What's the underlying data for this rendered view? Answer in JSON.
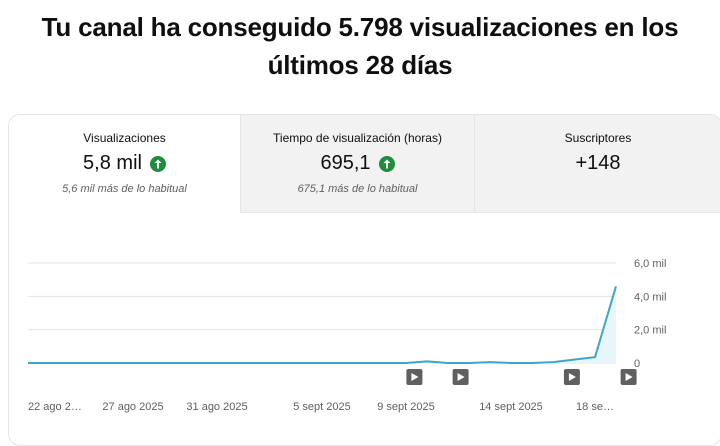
{
  "headline": "Tu canal ha conseguido 5.798 visualizaciones en los últimos 28 días",
  "tabs": [
    {
      "label": "Visualizaciones",
      "value": "5,8 mil",
      "trend_icon": "arrow-up-circle-icon",
      "sub": "5,6 mil más de lo habitual",
      "active": true
    },
    {
      "label": "Tiempo de visualización (horas)",
      "value": "695,1",
      "trend_icon": "arrow-up-circle-icon",
      "sub": "675,1 más de lo habitual",
      "active": false
    },
    {
      "label": "Suscriptores",
      "value": "+148",
      "active": false
    }
  ],
  "colors": {
    "line": "#3ea6c8",
    "area": "#e8f6fb",
    "trend_up": "#1e8e3e",
    "gridline": "#e5e5e5"
  },
  "chart_data": {
    "type": "area",
    "series": [
      {
        "name": "Visualizaciones",
        "values": [
          0,
          0,
          0,
          0,
          0,
          0,
          0,
          0,
          0,
          0,
          0,
          0,
          0,
          0,
          0,
          0,
          0,
          0,
          0,
          0.1,
          0,
          0,
          0.05,
          0,
          0,
          0.05,
          0.2,
          0.35,
          4.6
        ]
      }
    ],
    "y_ticks": [
      "6,0 mil",
      "4,0 mil",
      "2,0 mil",
      "0"
    ],
    "ylim": [
      0,
      6
    ],
    "x_ticks": [
      {
        "label": "22 ago 2…",
        "day": 0
      },
      {
        "label": "27 ago 2025",
        "day": 5
      },
      {
        "label": "31 ago 2025",
        "day": 9
      },
      {
        "label": "5 sept 2025",
        "day": 14
      },
      {
        "label": "9 sept 2025",
        "day": 18
      },
      {
        "label": "14 sept 2025",
        "day": 23
      },
      {
        "label": "18 se…",
        "day": 27
      }
    ],
    "video_markers": [
      18.4,
      20.6,
      25.9,
      28.6
    ],
    "video_marker_icon": "play-icon",
    "grid": true
  }
}
